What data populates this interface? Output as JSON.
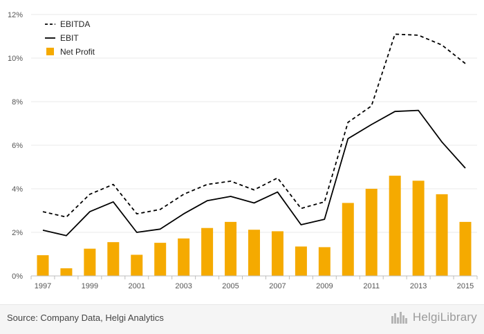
{
  "chart_data": {
    "type": "bar",
    "categories": [
      "1997",
      "1998",
      "1999",
      "2000",
      "2001",
      "2002",
      "2003",
      "2004",
      "2005",
      "2006",
      "2007",
      "2008",
      "2009",
      "2010",
      "2011",
      "2012",
      "2013",
      "2014",
      "2015"
    ],
    "x_tick_labels": [
      "1997",
      "1999",
      "2001",
      "2003",
      "2005",
      "2007",
      "2009",
      "2011",
      "2013",
      "2015"
    ],
    "y_tick_labels": [
      "0%",
      "2%",
      "4%",
      "6%",
      "8%",
      "10%",
      "12%"
    ],
    "ylim": [
      0,
      12
    ],
    "y_unit": "%",
    "grid": "horizontal",
    "legend_position": "top-left",
    "series": [
      {
        "name": "EBITDA",
        "type": "line",
        "style": "dashed",
        "color": "#000000",
        "values": [
          2.95,
          2.7,
          3.75,
          4.2,
          2.85,
          3.05,
          3.75,
          4.2,
          4.35,
          3.95,
          4.5,
          3.1,
          3.4,
          7.05,
          7.8,
          11.1,
          11.05,
          10.6,
          9.75
        ]
      },
      {
        "name": "EBIT",
        "type": "line",
        "style": "solid",
        "color": "#000000",
        "values": [
          2.1,
          1.85,
          2.95,
          3.4,
          2.0,
          2.15,
          2.85,
          3.45,
          3.65,
          3.35,
          3.85,
          2.35,
          2.6,
          6.3,
          6.95,
          7.55,
          7.6,
          6.15,
          4.95
        ]
      },
      {
        "name": "Net Profit",
        "type": "bar",
        "color": "#f5aa00",
        "values": [
          0.95,
          0.35,
          1.25,
          1.55,
          0.97,
          1.52,
          1.72,
          2.2,
          2.48,
          2.12,
          2.05,
          1.35,
          1.32,
          3.35,
          4.0,
          4.6,
          4.37,
          3.75,
          2.48
        ]
      }
    ]
  },
  "footer": {
    "source": "Source: Company Data, Helgi Analytics",
    "brand": "HelgiLibrary"
  }
}
